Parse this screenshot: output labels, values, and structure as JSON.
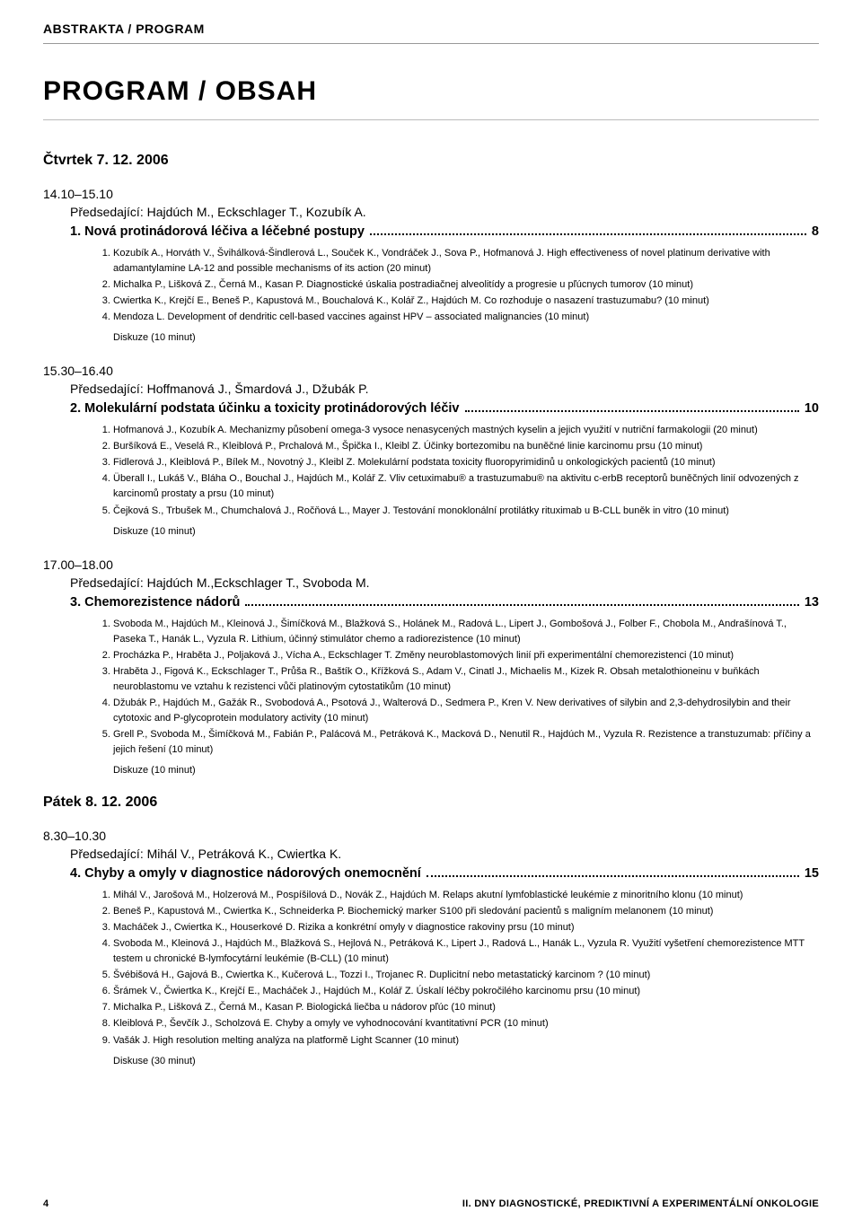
{
  "header": {
    "breadcrumb": "ABSTRAKTA / PROGRAM"
  },
  "title": "PROGRAM / OBSAH",
  "days": [
    {
      "heading": "Čtvrtek 7. 12. 2006",
      "blocks": [
        {
          "time": "14.10–15.10",
          "chair": "Předsedající: Hajdúch M., Eckschlager T., Kozubík A.",
          "section_title": "1. Nová protinádorová léčiva a léčebné postupy",
          "page": "8",
          "items": [
            "Kozubík A., Horváth V., Švihálková-Šindlerová L., Souček K., Vondráček J., Sova P., Hofmanová J. High effectiveness of novel platinum derivative with adamantylamine LA-12 and possible mechanisms of its action (20 minut)",
            "Michalka P., Lišková Z., Černá M., Kasan P. Diagnostické úskalia postradiačnej alveolitídy a progresie u pľúcnych tumorov (10 minut)",
            "Cwiertka K., Krejčí E., Beneš P., Kapustová M., Bouchalová K., Kolář Z., Hajdúch M. Co rozhoduje o nasazení trastuzumabu? (10 minut)",
            "Mendoza L. Development of dendritic cell-based vaccines against HPV – associated malignancies (10 minut)"
          ],
          "discussion": "Diskuze (10 minut)"
        },
        {
          "time": "15.30–16.40",
          "chair": "Předsedající: Hoffmanová J., Šmardová J., Džubák P.",
          "section_title": "2. Molekulární podstata účinku a toxicity protinádorových léčiv",
          "page": "10",
          "items": [
            "Hofmanová J., Kozubík A. Mechanizmy působení omega-3 vysoce nenasycených mastných kyselin a jejich využití v nutriční farmakologii (20 minut)",
            "Buršíková E., Veselá R., Kleiblová P., Prchalová M., Špička I., Kleibl Z. Účinky bortezomibu na buněčné linie karcinomu prsu (10 minut)",
            "Fidlerová J., Kleiblová P., Bílek M., Novotný J., Kleibl Z. Molekulární podstata toxicity fluoropyrimidinů u onkologických pacientů (10 minut)",
            "Überall I., Lukáš V., Bláha O., Bouchal J., Hajdúch M., Kolář Z. Vliv cetuximabu® a trastuzumabu® na aktivitu c-erbB receptorů buněčných linií odvozených z karcinomů prostaty a prsu (10 minut)",
            "Čejková S., Trbušek M., Chumchalová J., Ročňová L., Mayer J. Testování monoklonální protilátky rituximab u B-CLL buněk in vitro (10 minut)"
          ],
          "discussion": "Diskuze (10 minut)"
        },
        {
          "time": "17.00–18.00",
          "chair": "Předsedající: Hajdúch M.,Eckschlager T., Svoboda M.",
          "section_title": "3. Chemorezistence nádorů",
          "page": "13",
          "items": [
            "Svoboda M., Hajdúch M., Kleinová J., Šimíčková M., Blažková S., Holánek M., Radová L., Lipert J., Gombošová J., Folber F., Chobola M., Andrašínová T., Paseka T., Hanák L., Vyzula R. Lithium, účinný stimulátor chemo a radiorezistence (10 minut)",
            "Procházka P., Hraběta J., Poljaková J., Vícha A., Eckschlager T. Změny neuroblastomových linií při experimentální chemorezistenci (10 minut)",
            "Hraběta J., Figová K., Eckschlager T., Průša R., Baštík O., Křížková S., Adam V., Cinatl J., Michaelis M., Kizek R. Obsah metalothioneinu v buňkách neuroblastomu ve vztahu k rezistenci vůči platinovým cytostatikům (10 minut)",
            "Džubák P., Hajdúch M., Gažák R., Svobodová A., Psotová J., Walterová D., Sedmera P., Kren V. New derivatives of silybin and 2,3-dehydrosilybin and their cytotoxic and P-glycoprotein modulatory activity (10 minut)",
            "Grell P., Svoboda M., Šimíčková M., Fabián P., Palácová M., Petráková K., Macková D., Nenutil R., Hajdúch M., Vyzula R. Rezistence a transtuzumab: příčiny a jejich řešení (10 minut)"
          ],
          "discussion": "Diskuze (10 minut)"
        }
      ]
    },
    {
      "heading": "Pátek 8. 12. 2006",
      "blocks": [
        {
          "time": "8.30–10.30",
          "chair": "Předsedající: Mihál V., Petráková K., Cwiertka K.",
          "section_title": "4. Chyby a omyly v diagnostice nádorových onemocnění",
          "page": "15",
          "items": [
            "Mihál V., Jarošová M., Holzerová M., Pospíšilová D., Novák Z., Hajdúch M. Relaps akutní lymfoblastické leukémie z minoritního klonu (10 minut)",
            "Beneš P., Kapustová M., Cwiertka K., Schneiderka P. Biochemický marker S100 při sledování pacientů s maligním melanonem (10 minut)",
            "Macháček J., Cwiertka K., Houserkové D. Rizika a konkrétní omyly v diagnostice rakoviny prsu (10 minut)",
            "Svoboda M., Kleinová J., Hajdúch M., Blažková S., Hejlová N., Petráková K., Lipert J., Radová L., Hanák L., Vyzula R. Využití vyšetření chemorezistence MTT testem u chronické B-lymfocytární leukémie (B-CLL) (10 minut)",
            "Švébišová H., Gajová B., Cwiertka K., Kučerová L., Tozzi I., Trojanec R. Duplicitní nebo metastatický karcinom ? (10 minut)",
            "Šrámek V., Čwiertka K., Krejčí E., Macháček J., Hajdúch M., Kolář Z. Úskalí léčby pokročilého karcinomu prsu (10 minut)",
            "Michalka P., Lišková Z., Černá M., Kasan P. Biologická liečba u nádorov pľúc (10 minut)",
            "Kleiblová P., Ševčík J., Scholzová E. Chyby a omyly ve vyhodnocování kvantitativní PCR (10 minut)",
            "Vašák J. High resolution melting analýza na platformě Light Scanner (10 minut)"
          ],
          "discussion": "Diskuse (30 minut)"
        }
      ]
    }
  ],
  "footer": {
    "page_number": "4",
    "right": "II. DNY DIAGNOSTICKÉ, PREDIKTIVNÍ A EXPERIMENTÁLNÍ ONKOLOGIE"
  }
}
